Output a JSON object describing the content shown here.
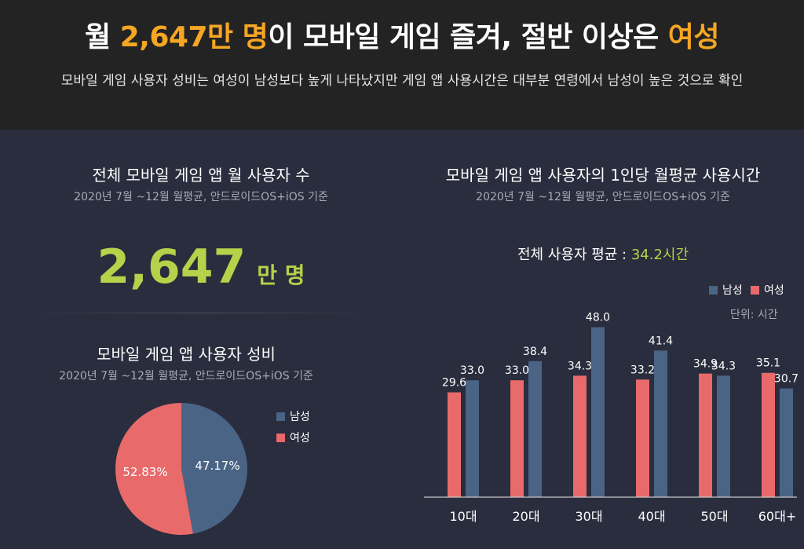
{
  "header": {
    "headline_part1": "월 ",
    "headline_part2": "2,647만 명",
    "headline_part3": "이 모바일 게임 즐겨, 절반 이상은 ",
    "headline_part4": "여성",
    "subheadline": "모바일 게임 사용자 성비는 여성이  남성보다 높게 나타났지만 게임 앱 사용시간은 대부분 연령에서 남성이 높은 것으로 확인"
  },
  "total_users": {
    "title": "전체 모바일 게임 앱  월 사용자 수",
    "subtitle": "2020년 7월 ~12월  월평균, 안드로이드OS+iOS 기준",
    "value": "2,647",
    "unit": "만 명"
  },
  "colors": {
    "male": "#4a6486",
    "female": "#e96a6a",
    "accent_yellow": "#f5a623",
    "accent_green": "#b5d24a"
  },
  "chart_data": [
    {
      "type": "pie",
      "title": "모바일 게임 앱 사용자 성비",
      "subtitle": "2020년 7월 ~12월  월평균, 안드로이드OS+iOS 기준",
      "slices": [
        {
          "name": "남성",
          "value": 47.17,
          "label": "47.17%"
        },
        {
          "name": "여성",
          "value": 52.83,
          "label": "52.83%"
        }
      ],
      "legend": [
        "남성",
        "여성"
      ],
      "legend_position": "right"
    },
    {
      "type": "bar",
      "title": "모바일 게임 앱 사용자의 1인당 월평균 사용시간",
      "subtitle": "2020년 7월 ~12월  월평균, 안드로이드OS+iOS 기준",
      "average_label": "전체 사용자 평균 : ",
      "average_value": "34.2시간",
      "unit_label": "단위: 시간",
      "categories": [
        "10대",
        "20대",
        "30대",
        "40대",
        "50대",
        "60대+"
      ],
      "series": [
        {
          "name": "여성",
          "values": [
            29.6,
            33.0,
            34.3,
            33.2,
            34.9,
            35.1
          ]
        },
        {
          "name": "남성",
          "values": [
            33.0,
            38.4,
            48.0,
            41.4,
            34.3,
            30.7
          ]
        }
      ],
      "value_labels": {
        "여성": [
          "29.6",
          "33.0",
          "34.3",
          "33.2",
          "34.9",
          "35.1"
        ],
        "남성": [
          "33.0",
          "38.4",
          "48.0",
          "41.4",
          "34.3",
          "30.7"
        ]
      },
      "legend": [
        "남성",
        "여성"
      ],
      "legend_position": "top-right",
      "ylim": [
        0,
        55
      ],
      "grid": false
    }
  ]
}
